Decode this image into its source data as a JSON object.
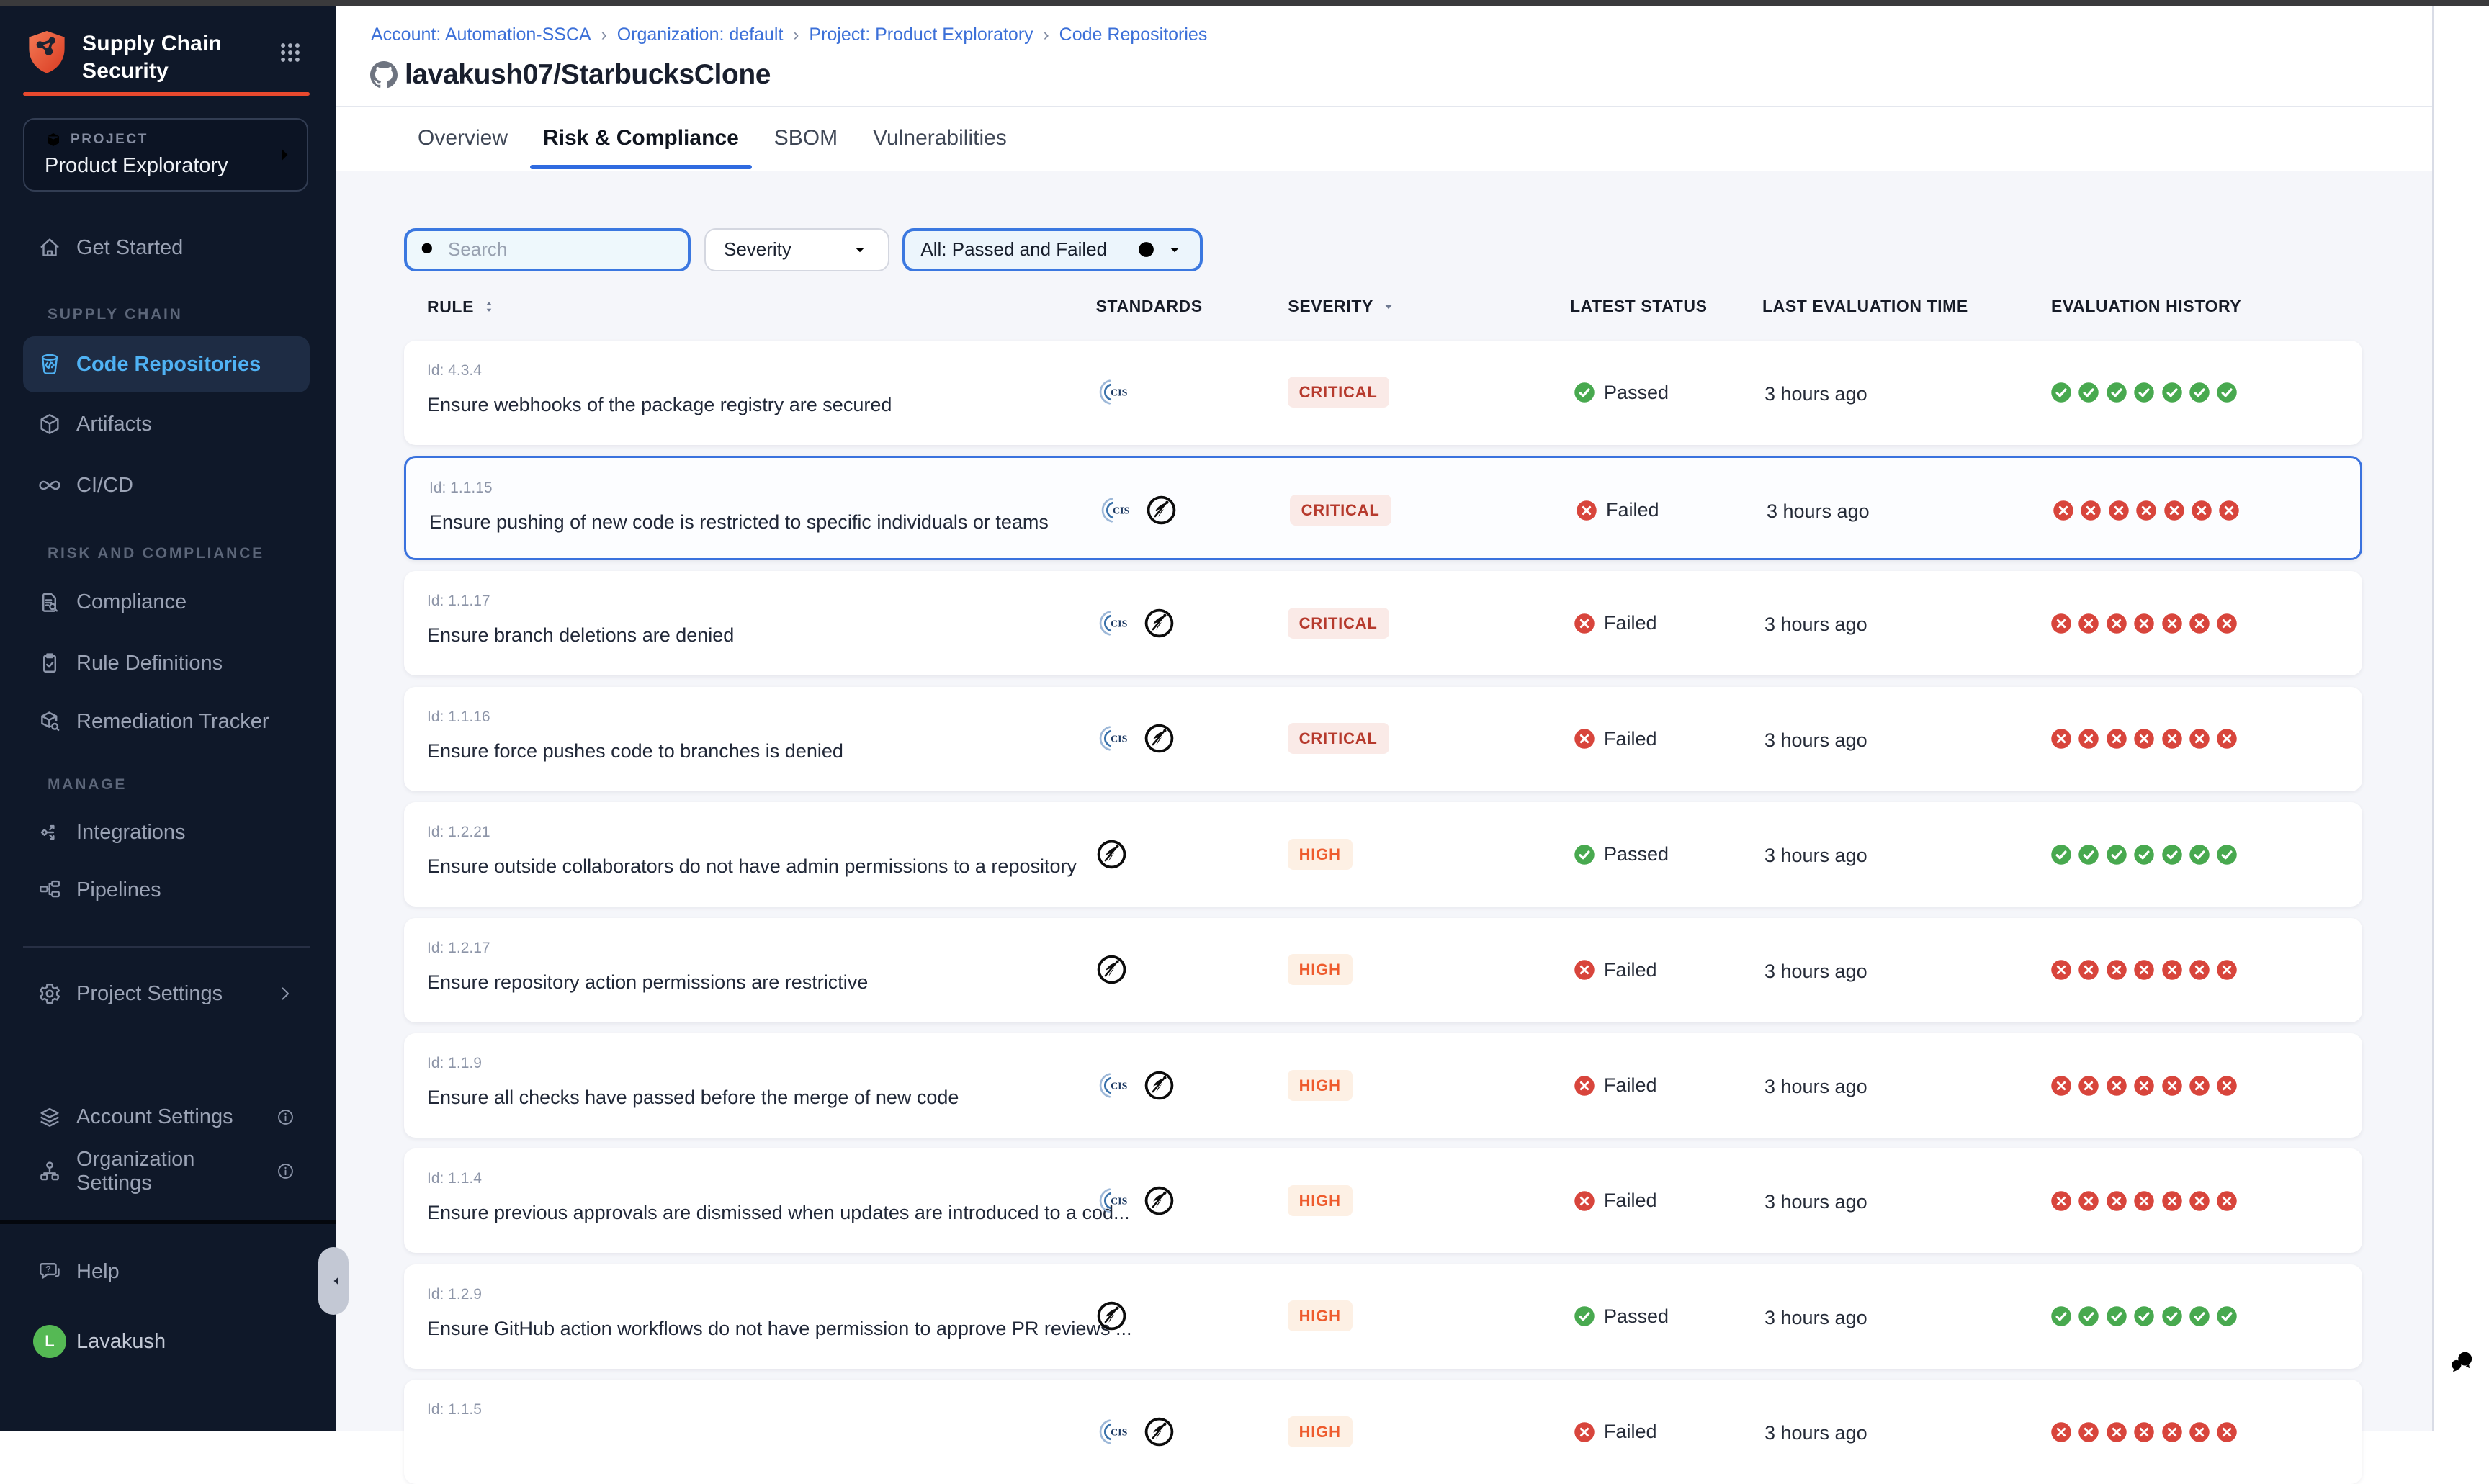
{
  "sidebar": {
    "brand": {
      "line1": "Supply Chain",
      "line2": "Security"
    },
    "project": {
      "label": "PROJECT",
      "name": "Product Exploratory"
    },
    "items": {
      "get_started": "Get Started",
      "section_supply": "SUPPLY CHAIN",
      "code_repositories": "Code Repositories",
      "artifacts": "Artifacts",
      "cicd": "CI/CD",
      "section_risk": "RISK AND COMPLIANCE",
      "compliance": "Compliance",
      "rule_definitions": "Rule Definitions",
      "remediation_tracker": "Remediation Tracker",
      "section_manage": "MANAGE",
      "integrations": "Integrations",
      "pipelines": "Pipelines",
      "project_settings": "Project Settings",
      "account_settings": "Account Settings",
      "organization_settings": "Organization Settings",
      "help": "Help"
    },
    "user": {
      "initial": "L",
      "name": "Lavakush"
    }
  },
  "header": {
    "breadcrumb": [
      "Account: Automation-SSCA",
      "Organization: default",
      "Project: Product Exploratory",
      "Code Repositories"
    ],
    "repo_title": "lavakush07/StarbucksClone",
    "tabs": [
      "Overview",
      "Risk & Compliance",
      "SBOM",
      "Vulnerabilities"
    ],
    "active_tab": "Risk & Compliance"
  },
  "filters": {
    "search_placeholder": "Search",
    "severity_label": "Severity",
    "status_filter_label": "All: Passed and Failed"
  },
  "table": {
    "columns": [
      "RULE",
      "STANDARDS",
      "SEVERITY",
      "LATEST STATUS",
      "LAST EVALUATION TIME",
      "EVALUATION HISTORY"
    ],
    "rows": [
      {
        "id": "Id: 4.3.4",
        "rule": "Ensure webhooks of the package registry are secured",
        "standards": [
          "cis"
        ],
        "severity": "CRITICAL",
        "status": "Passed",
        "time": "3 hours ago",
        "history": [
          "passed",
          "passed",
          "passed",
          "passed",
          "passed",
          "passed",
          "passed"
        ],
        "selected": false
      },
      {
        "id": "Id: 1.1.15",
        "rule": "Ensure pushing of new code is restricted to specific individuals or teams",
        "standards": [
          "cis",
          "owasp"
        ],
        "severity": "CRITICAL",
        "status": "Failed",
        "time": "3 hours ago",
        "history": [
          "failed",
          "failed",
          "failed",
          "failed",
          "failed",
          "failed",
          "failed"
        ],
        "selected": true
      },
      {
        "id": "Id: 1.1.17",
        "rule": "Ensure branch deletions are denied",
        "standards": [
          "cis",
          "owasp"
        ],
        "severity": "CRITICAL",
        "status": "Failed",
        "time": "3 hours ago",
        "history": [
          "failed",
          "failed",
          "failed",
          "failed",
          "failed",
          "failed",
          "failed"
        ],
        "selected": false
      },
      {
        "id": "Id: 1.1.16",
        "rule": "Ensure force pushes code to branches is denied",
        "standards": [
          "cis",
          "owasp"
        ],
        "severity": "CRITICAL",
        "status": "Failed",
        "time": "3 hours ago",
        "history": [
          "failed",
          "failed",
          "failed",
          "failed",
          "failed",
          "failed",
          "failed"
        ],
        "selected": false
      },
      {
        "id": "Id: 1.2.21",
        "rule": "Ensure outside collaborators do not have admin permissions to a repository",
        "standards": [
          "owasp"
        ],
        "severity": "HIGH",
        "status": "Passed",
        "time": "3 hours ago",
        "history": [
          "passed",
          "passed",
          "passed",
          "passed",
          "passed",
          "passed",
          "passed"
        ],
        "selected": false
      },
      {
        "id": "Id: 1.2.17",
        "rule": "Ensure repository action permissions are restrictive",
        "standards": [
          "owasp"
        ],
        "severity": "HIGH",
        "status": "Failed",
        "time": "3 hours ago",
        "history": [
          "failed",
          "failed",
          "failed",
          "failed",
          "failed",
          "failed",
          "failed"
        ],
        "selected": false
      },
      {
        "id": "Id: 1.1.9",
        "rule": "Ensure all checks have passed before the merge of new code",
        "standards": [
          "cis",
          "owasp"
        ],
        "severity": "HIGH",
        "status": "Failed",
        "time": "3 hours ago",
        "history": [
          "failed",
          "failed",
          "failed",
          "failed",
          "failed",
          "failed",
          "failed"
        ],
        "selected": false
      },
      {
        "id": "Id: 1.1.4",
        "rule": "Ensure previous approvals are dismissed when updates are introduced to a cod...",
        "standards": [
          "cis",
          "owasp"
        ],
        "severity": "HIGH",
        "status": "Failed",
        "time": "3 hours ago",
        "history": [
          "failed",
          "failed",
          "failed",
          "failed",
          "failed",
          "failed",
          "failed"
        ],
        "selected": false
      },
      {
        "id": "Id: 1.2.9",
        "rule": "Ensure GitHub action workflows do not have permission to approve PR reviews ...",
        "standards": [
          "owasp"
        ],
        "severity": "HIGH",
        "status": "Passed",
        "time": "3 hours ago",
        "history": [
          "passed",
          "passed",
          "passed",
          "passed",
          "passed",
          "passed",
          "passed"
        ],
        "selected": false
      },
      {
        "id": "Id: 1.1.5",
        "rule": "",
        "standards": [
          "cis",
          "owasp"
        ],
        "severity": "HIGH",
        "status": "Failed",
        "time": "3 hours ago",
        "history": [
          "failed",
          "failed",
          "failed",
          "failed",
          "failed",
          "failed",
          "failed"
        ],
        "selected": false
      }
    ]
  }
}
